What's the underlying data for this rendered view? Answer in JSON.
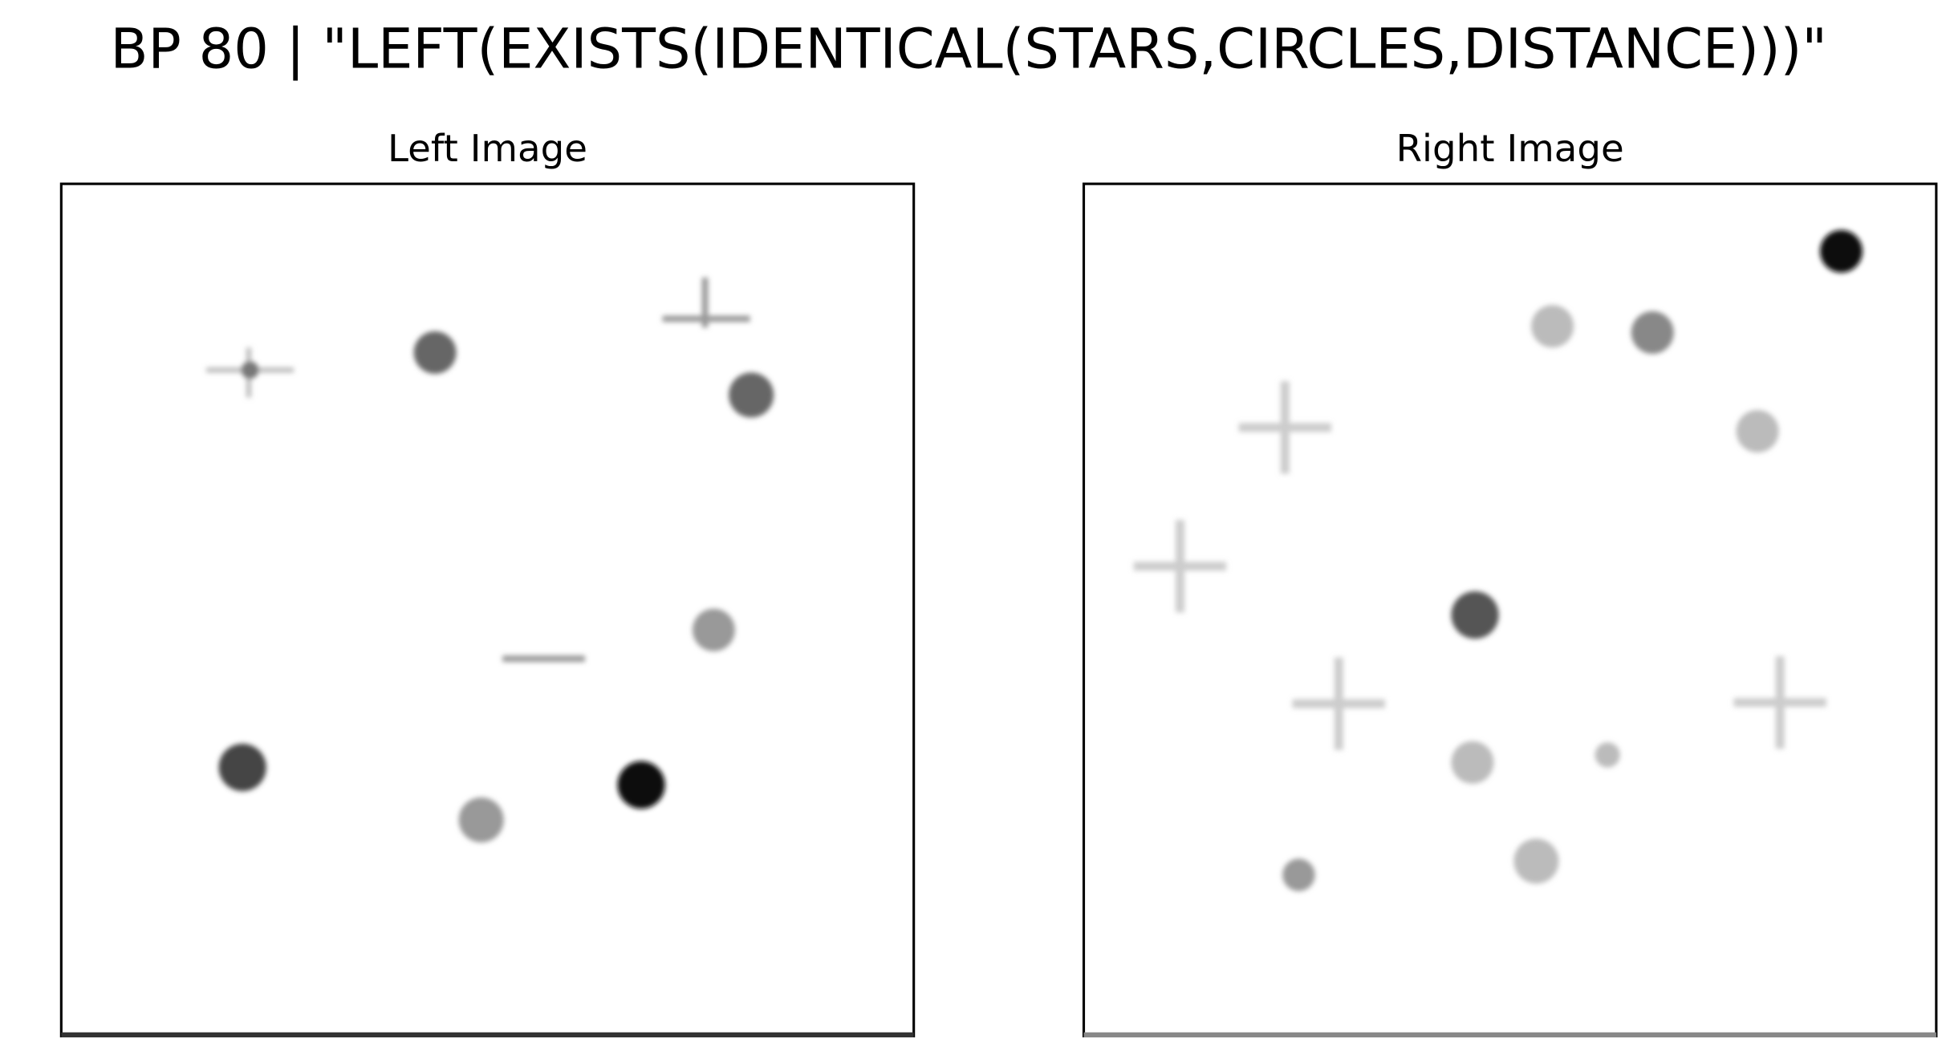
{
  "header": {
    "title": "BP 80 | \"LEFT(EXISTS(IDENTICAL(STARS,CIRCLES,DISTANCE)))\""
  },
  "panels": [
    {
      "title": "Left Image"
    },
    {
      "title": "Right Image"
    }
  ]
}
